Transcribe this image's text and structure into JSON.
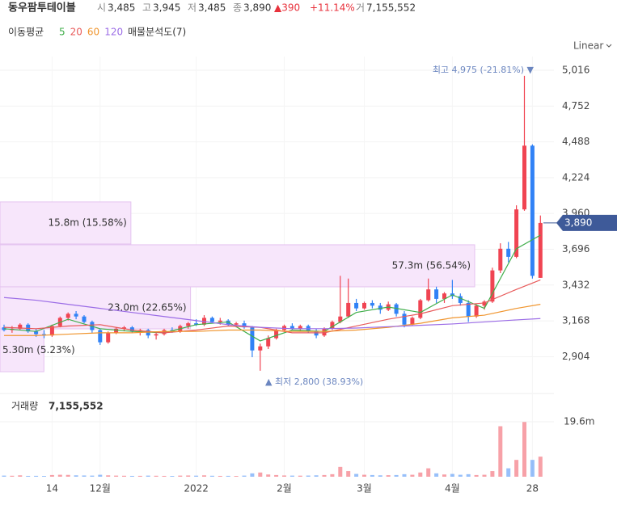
{
  "header": {
    "name": "동우팜투테이블",
    "open_label": "시",
    "open": "3,485",
    "high_label": "고",
    "high": "3,945",
    "low_label": "저",
    "low": "3,485",
    "close_label": "종",
    "close": "3,890",
    "change": "▲390",
    "change_pct": "+11.14%",
    "volume_label": "거",
    "volume": "7,155,552"
  },
  "ma_title": "이동평균",
  "profile_title": "매물분석도(7)",
  "scale_menu": "Linear",
  "chart_data": {
    "type": "candlestick",
    "categories": [
      null,
      null,
      null,
      null,
      null,
      null,
      "14",
      null,
      null,
      null,
      null,
      null,
      "12월",
      null,
      null,
      null,
      null,
      null,
      null,
      null,
      null,
      null,
      null,
      null,
      "2022",
      null,
      null,
      null,
      null,
      null,
      null,
      null,
      null,
      null,
      null,
      "2월",
      null,
      null,
      null,
      null,
      null,
      null,
      null,
      null,
      null,
      "3월",
      null,
      null,
      null,
      null,
      null,
      null,
      null,
      null,
      null,
      null,
      "4월",
      null,
      null,
      null,
      null,
      null,
      null,
      null,
      null,
      null,
      "28",
      null
    ],
    "ohlc": [
      [
        3120,
        3140,
        3090,
        3100
      ],
      [
        3100,
        3130,
        3080,
        3110
      ],
      [
        3110,
        3150,
        3100,
        3140
      ],
      [
        3140,
        3150,
        3080,
        3090
      ],
      [
        3090,
        3110,
        3050,
        3070
      ],
      [
        3070,
        3100,
        3040,
        3060
      ],
      [
        3060,
        3140,
        3050,
        3130
      ],
      [
        3130,
        3200,
        3120,
        3190
      ],
      [
        3190,
        3230,
        3170,
        3220
      ],
      [
        3220,
        3240,
        3180,
        3200
      ],
      [
        3200,
        3210,
        3150,
        3160
      ],
      [
        3160,
        3170,
        3080,
        3100
      ],
      [
        3100,
        3110,
        2990,
        3010
      ],
      [
        3010,
        3090,
        3000,
        3080
      ],
      [
        3080,
        3120,
        3070,
        3110
      ],
      [
        3110,
        3130,
        3090,
        3120
      ],
      [
        3120,
        3130,
        3080,
        3090
      ],
      [
        3090,
        3110,
        3060,
        3100
      ],
      [
        3100,
        3110,
        3040,
        3060
      ],
      [
        3060,
        3080,
        3030,
        3070
      ],
      [
        3070,
        3110,
        3060,
        3100
      ],
      [
        3100,
        3120,
        3080,
        3090
      ],
      [
        3090,
        3140,
        3080,
        3130
      ],
      [
        3130,
        3160,
        3110,
        3150
      ],
      [
        3150,
        3180,
        3130,
        3140
      ],
      [
        3140,
        3210,
        3130,
        3190
      ],
      [
        3190,
        3200,
        3150,
        3160
      ],
      [
        3160,
        3190,
        3140,
        3170
      ],
      [
        3170,
        3180,
        3130,
        3140
      ],
      [
        3140,
        3160,
        3120,
        3150
      ],
      [
        3150,
        3170,
        3110,
        3120
      ],
      [
        3120,
        3130,
        2900,
        2950
      ],
      [
        2950,
        3000,
        2800,
        2980
      ],
      [
        2980,
        3060,
        2960,
        3040
      ],
      [
        3040,
        3110,
        3030,
        3100
      ],
      [
        3100,
        3140,
        3090,
        3130
      ],
      [
        3130,
        3150,
        3100,
        3110
      ],
      [
        3110,
        3140,
        3090,
        3130
      ],
      [
        3130,
        3140,
        3080,
        3090
      ],
      [
        3090,
        3110,
        3040,
        3060
      ],
      [
        3060,
        3120,
        3050,
        3110
      ],
      [
        3110,
        3170,
        3100,
        3160
      ],
      [
        3160,
        3500,
        3150,
        3200
      ],
      [
        3200,
        3480,
        3190,
        3300
      ],
      [
        3300,
        3330,
        3240,
        3260
      ],
      [
        3260,
        3310,
        3250,
        3300
      ],
      [
        3300,
        3320,
        3260,
        3280
      ],
      [
        3280,
        3300,
        3220,
        3250
      ],
      [
        3250,
        3310,
        3240,
        3290
      ],
      [
        3290,
        3300,
        3200,
        3220
      ],
      [
        3220,
        3240,
        3120,
        3140
      ],
      [
        3140,
        3200,
        3130,
        3190
      ],
      [
        3190,
        3330,
        3180,
        3320
      ],
      [
        3320,
        3480,
        3310,
        3400
      ],
      [
        3400,
        3420,
        3300,
        3330
      ],
      [
        3330,
        3380,
        3300,
        3370
      ],
      [
        3370,
        3470,
        3330,
        3350
      ],
      [
        3350,
        3370,
        3280,
        3300
      ],
      [
        3300,
        3320,
        3160,
        3200
      ],
      [
        3200,
        3290,
        3190,
        3280
      ],
      [
        3280,
        3320,
        3250,
        3310
      ],
      [
        3310,
        3560,
        3300,
        3540
      ],
      [
        3540,
        3740,
        3520,
        3700
      ],
      [
        3700,
        3750,
        3600,
        3640
      ],
      [
        3640,
        4020,
        3630,
        3990
      ],
      [
        3990,
        4975,
        3980,
        4460
      ],
      [
        4460,
        4470,
        3480,
        3500
      ],
      [
        3485,
        3945,
        3485,
        3890
      ]
    ],
    "volume": [
      400000,
      350000,
      500000,
      300000,
      320000,
      280000,
      600000,
      700000,
      650000,
      500000,
      450000,
      400000,
      700000,
      500000,
      400000,
      350000,
      300000,
      320000,
      400000,
      350000,
      300000,
      280000,
      400000,
      450000,
      380000,
      500000,
      350000,
      300000,
      320000,
      280000,
      400000,
      1200000,
      1500000,
      800000,
      600000,
      450000,
      400000,
      380000,
      420000,
      500000,
      600000,
      900000,
      3500000,
      2000000,
      1000000,
      700000,
      600000,
      500000,
      550000,
      600000,
      900000,
      700000,
      1500000,
      3000000,
      1200000,
      800000,
      1000000,
      700000,
      900000,
      600000,
      700000,
      2000000,
      18000000,
      3000000,
      6000000,
      19500000,
      6000000,
      7155552
    ],
    "up_color": "#f04452",
    "down_color": "#3182f6",
    "ma": [
      {
        "name": "5",
        "color": "#3fae4a",
        "x": [
          0,
          4,
          8,
          12,
          16,
          20,
          24,
          28,
          32,
          36,
          40,
          44,
          48,
          52,
          56,
          60,
          64,
          67
        ],
        "values": [
          3110,
          3090,
          3180,
          3110,
          3090,
          3080,
          3140,
          3160,
          3020,
          3100,
          3090,
          3230,
          3270,
          3230,
          3360,
          3260,
          3700,
          3800
        ]
      },
      {
        "name": "20",
        "color": "#e85a5a",
        "x": [
          0,
          4,
          8,
          12,
          16,
          20,
          24,
          28,
          32,
          36,
          40,
          44,
          48,
          52,
          56,
          60,
          64,
          67
        ],
        "values": [
          3120,
          3110,
          3130,
          3140,
          3100,
          3080,
          3100,
          3130,
          3120,
          3080,
          3080,
          3130,
          3180,
          3220,
          3280,
          3300,
          3400,
          3470
        ]
      },
      {
        "name": "60",
        "color": "#f0952e",
        "x": [
          0,
          4,
          8,
          12,
          16,
          20,
          24,
          28,
          32,
          36,
          40,
          44,
          48,
          52,
          56,
          60,
          64,
          67
        ],
        "values": [
          3060,
          3060,
          3070,
          3080,
          3080,
          3090,
          3090,
          3100,
          3100,
          3090,
          3090,
          3100,
          3120,
          3150,
          3190,
          3210,
          3260,
          3290
        ]
      },
      {
        "name": "120",
        "color": "#9b6ce6",
        "x": [
          0,
          4,
          8,
          12,
          16,
          20,
          24,
          28,
          32,
          36,
          40,
          44,
          48,
          52,
          56,
          60,
          64,
          67
        ],
        "values": [
          3340,
          3320,
          3290,
          3260,
          3230,
          3200,
          3170,
          3140,
          3120,
          3110,
          3110,
          3115,
          3125,
          3135,
          3145,
          3160,
          3175,
          3185
        ]
      }
    ],
    "ylim": [
      2674,
      5117
    ],
    "yticks": [
      {
        "value": 2904,
        "label": "2,904"
      },
      {
        "value": 3168,
        "label": "3,168"
      },
      {
        "value": 3432,
        "label": "3,432"
      },
      {
        "value": 3696,
        "label": "3,696"
      },
      {
        "value": 3960,
        "label": "3,960"
      },
      {
        "value": 4224,
        "label": "4,224"
      },
      {
        "value": 4488,
        "label": "4,488"
      },
      {
        "value": 4752,
        "label": "4,752"
      },
      {
        "value": 5016,
        "label": "5,016"
      }
    ],
    "current": {
      "value": 3890,
      "label": "3,890"
    },
    "vlim": [
      0,
      28800000
    ],
    "vticks": [
      {
        "value": 19600000,
        "label": "19.6m"
      }
    ],
    "volume_title": "거래량",
    "volume_last": "7,155,552",
    "profile": [
      {
        "low": 3735,
        "high": 4045,
        "value": 15800000,
        "label": "15.8m (15.58%)"
      },
      {
        "low": 3419,
        "high": 3729,
        "value": 57300000,
        "label": "57.3m (56.54%)"
      },
      {
        "low": 3109,
        "high": 3419,
        "value": 23000000,
        "label": "23.0m (22.65%)"
      },
      {
        "low": 2793,
        "high": 3109,
        "value": 5300000,
        "label": "5.30m (5.23%)"
      }
    ],
    "annotations": [
      {
        "text": "최고 4,975 (-21.81%) ▼",
        "value": 4975
      },
      {
        "text": "▲ 최저 2,800 (38.93%)",
        "value": 2800
      }
    ],
    "grid": true
  }
}
